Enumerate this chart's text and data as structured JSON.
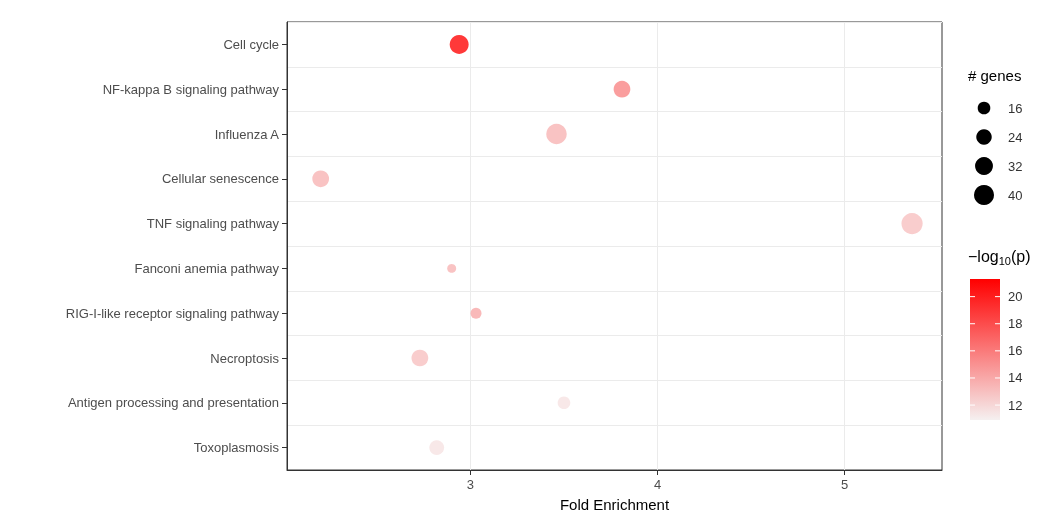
{
  "chart_data": {
    "type": "bubble",
    "orientation": "horizontal",
    "xlabel": "Fold Enrichment",
    "legend_title": "# genes",
    "clabel": "−log$_{10}$(p)",
    "categories": [
      "Cell cycle",
      "NF-kappa B signaling pathway",
      "Influenza A",
      "Cellular senescence",
      "TNF signaling pathway",
      "Fanconi anemia pathway",
      "RIG-I-like receptor signaling pathway",
      "Necroptosis",
      "Antigen processing and presentation",
      "Toxoplasmosis"
    ],
    "values": [
      2.94,
      3.81,
      3.46,
      2.2,
      5.36,
      2.9,
      3.03,
      2.73,
      3.5,
      2.82
    ],
    "sizes": [
      36,
      28,
      42,
      28,
      45,
      8,
      12,
      28,
      16,
      22
    ],
    "cvalues": [
      21,
      15.5,
      13.5,
      13.5,
      13,
      13.5,
      14,
      13,
      11.5,
      11.5
    ],
    "size_legend": [
      16,
      24,
      32,
      40
    ],
    "clim": [
      10.9,
      21.3
    ],
    "cticks": [
      12,
      14,
      16,
      18,
      20
    ],
    "xlim": [
      2.02,
      5.52
    ],
    "xticks": [
      3,
      4,
      5
    ],
    "grid": true
  }
}
